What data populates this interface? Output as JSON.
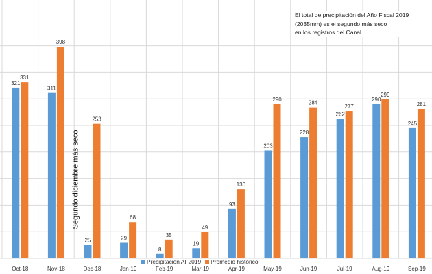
{
  "chart_data": {
    "type": "bar",
    "title": "",
    "xlabel": "",
    "ylabel": "",
    "ylim": [
      0,
      430
    ],
    "grid": true,
    "legend_position": "bottom",
    "categories": [
      "Oct-18",
      "Nov-18",
      "Dec-18",
      "Jan-19",
      "Feb-19",
      "Mar-19",
      "Apr-19",
      "May-19",
      "Jun-19",
      "Jul-19",
      "Aug-19",
      "Sep-19"
    ],
    "series": [
      {
        "name": "Precipitación AF2019",
        "color": "#5B9BD5",
        "values": [
          321,
          311,
          25,
          29,
          8,
          19,
          93,
          203,
          228,
          262,
          290,
          245
        ]
      },
      {
        "name": "Promedio histórico",
        "color": "#ED7D31",
        "values": [
          331,
          398,
          253,
          68,
          35,
          49,
          130,
          290,
          284,
          277,
          299,
          281
        ]
      }
    ],
    "annotations": {
      "note": [
        "El total de precipitación del Año Fiscal 2019",
        "(2035mm) es el segundo más seco",
        "en los registros del Canal"
      ],
      "vertical_label": "Segundo diciembre más seco"
    }
  }
}
